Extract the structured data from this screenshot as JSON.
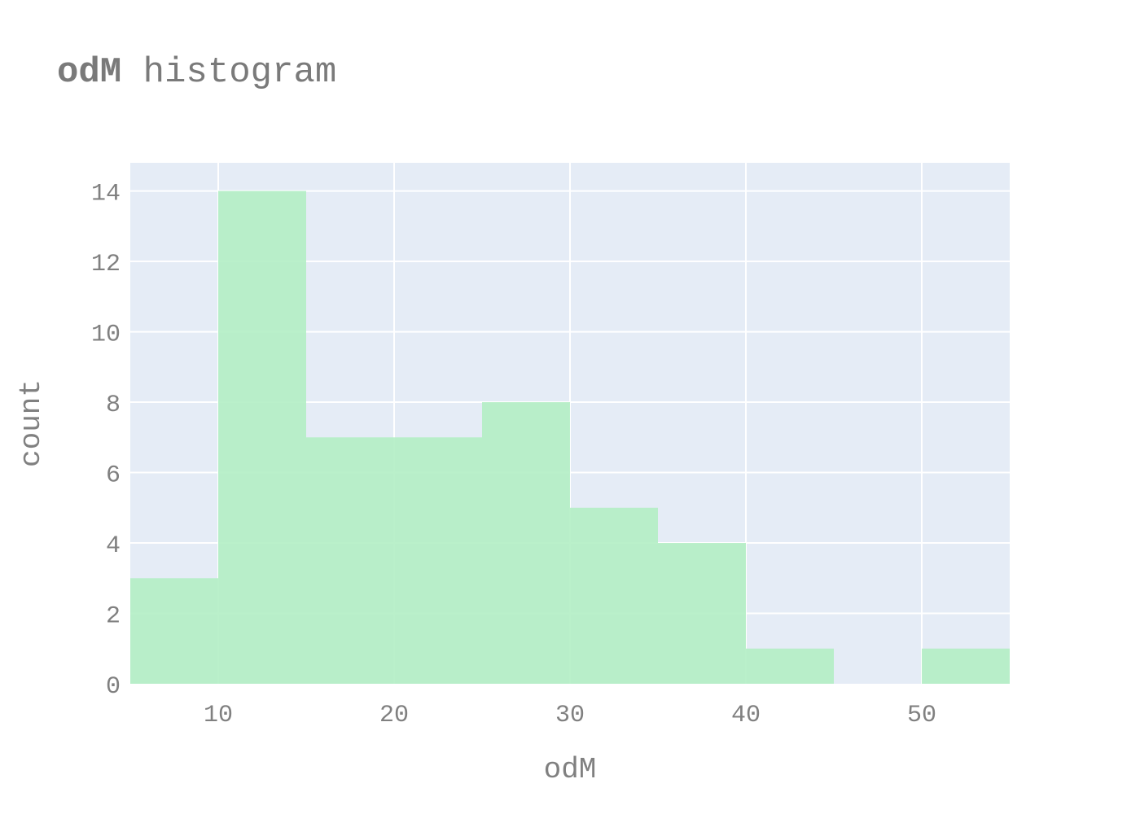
{
  "chart_data": {
    "type": "bar",
    "title_bold": "odM",
    "title_rest": " histogram",
    "xlabel": "odM",
    "ylabel": "count",
    "bins": [
      {
        "start": 5,
        "end": 10,
        "count": 3
      },
      {
        "start": 10,
        "end": 15,
        "count": 14
      },
      {
        "start": 15,
        "end": 20,
        "count": 7
      },
      {
        "start": 20,
        "end": 25,
        "count": 7
      },
      {
        "start": 25,
        "end": 30,
        "count": 8
      },
      {
        "start": 30,
        "end": 35,
        "count": 5
      },
      {
        "start": 35,
        "end": 40,
        "count": 4
      },
      {
        "start": 40,
        "end": 45,
        "count": 1
      },
      {
        "start": 45,
        "end": 50,
        "count": 0
      },
      {
        "start": 50,
        "end": 55,
        "count": 1
      }
    ],
    "xlim": [
      5,
      55
    ],
    "ylim": [
      0,
      14.8
    ],
    "xticks": [
      10,
      20,
      30,
      40,
      50
    ],
    "yticks": [
      0,
      2,
      4,
      6,
      8,
      10,
      12,
      14
    ],
    "grid": true,
    "colors": {
      "bar": "#b2eec4",
      "plot_background": "#e5ecf6",
      "grid": "#ffffff",
      "text": "#808080",
      "title": "#7a7a7a"
    }
  }
}
